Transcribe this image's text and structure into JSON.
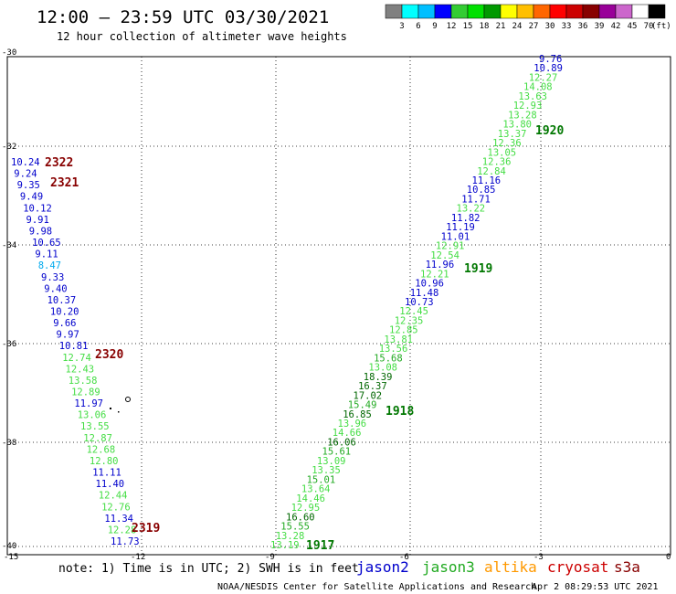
{
  "header": {
    "title": "12:00 – 23:59 UTC 03/30/2021",
    "subtitle": "12 hour collection of altimeter wave heights"
  },
  "colorbar": {
    "labels": [
      "3",
      "6",
      "9",
      "12",
      "15",
      "18",
      "21",
      "24",
      "27",
      "30",
      "33",
      "36",
      "39",
      "42",
      "45",
      "70"
    ],
    "unit": "(ft)",
    "colors": [
      "#808080",
      "#00ffff",
      "#00bfff",
      "#0000ff",
      "#33cc33",
      "#00e000",
      "#009900",
      "#ffff00",
      "#ffbf00",
      "#ff6600",
      "#ff0000",
      "#cc0000",
      "#880000",
      "#990099",
      "#cc66cc",
      "#ffffff",
      "#000000"
    ]
  },
  "axes": {
    "lon_labels": [
      "-15",
      "-12",
      "-9",
      "-6",
      "-3",
      "0"
    ],
    "lat_labels": [
      "-30",
      "-32",
      "-34",
      "-36",
      "-38",
      "-40"
    ]
  },
  "tracks": {
    "left_values": [
      {
        "t": "10.24",
        "c": "#0000cc"
      },
      {
        "t": "9.24",
        "c": "#0000cc"
      },
      {
        "t": "9.35",
        "c": "#0000cc"
      },
      {
        "t": "9.49",
        "c": "#0000cc"
      },
      {
        "t": "10.12",
        "c": "#0000cc"
      },
      {
        "t": "9.91",
        "c": "#0000cc"
      },
      {
        "t": "9.98",
        "c": "#0000cc"
      },
      {
        "t": "10.65",
        "c": "#0000cc"
      },
      {
        "t": "9.11",
        "c": "#0000cc"
      },
      {
        "t": "8.47",
        "c": "#00aaee"
      },
      {
        "t": "9.33",
        "c": "#0000cc"
      },
      {
        "t": "9.40",
        "c": "#0000cc"
      },
      {
        "t": "10.37",
        "c": "#0000cc"
      },
      {
        "t": "10.20",
        "c": "#0000cc"
      },
      {
        "t": "9.66",
        "c": "#0000cc"
      },
      {
        "t": "9.97",
        "c": "#0000cc"
      },
      {
        "t": "10.81",
        "c": "#0000cc"
      },
      {
        "t": "12.74",
        "c": "#44dd44"
      },
      {
        "t": "12.43",
        "c": "#44dd44"
      },
      {
        "t": "13.58",
        "c": "#44dd44"
      },
      {
        "t": "12.89",
        "c": "#44dd44"
      },
      {
        "t": "11.97",
        "c": "#0000cc"
      },
      {
        "t": "13.06",
        "c": "#44dd44"
      },
      {
        "t": "13.55",
        "c": "#44dd44"
      },
      {
        "t": "12.87",
        "c": "#44dd44"
      },
      {
        "t": "12.68",
        "c": "#44dd44"
      },
      {
        "t": "12.80",
        "c": "#44dd44"
      },
      {
        "t": "11.11",
        "c": "#0000cc"
      },
      {
        "t": "11.40",
        "c": "#0000cc"
      },
      {
        "t": "12.44",
        "c": "#44dd44"
      },
      {
        "t": "12.76",
        "c": "#44dd44"
      },
      {
        "t": "11.34",
        "c": "#0000cc"
      },
      {
        "t": "12.28",
        "c": "#44dd44"
      },
      {
        "t": "11.73",
        "c": "#0000cc"
      }
    ],
    "right_values": [
      {
        "t": "9.76",
        "c": "#0000cc"
      },
      {
        "t": "10.89",
        "c": "#0000cc"
      },
      {
        "t": "12.27",
        "c": "#44dd44"
      },
      {
        "t": "14.08",
        "c": "#44dd44"
      },
      {
        "t": "13.63",
        "c": "#44dd44"
      },
      {
        "t": "12.93",
        "c": "#44dd44"
      },
      {
        "t": "13.28",
        "c": "#44dd44"
      },
      {
        "t": "13.80",
        "c": "#44dd44"
      },
      {
        "t": "13.37",
        "c": "#44dd44"
      },
      {
        "t": "12.36",
        "c": "#44dd44"
      },
      {
        "t": "13.05",
        "c": "#44dd44"
      },
      {
        "t": "12.36",
        "c": "#44dd44"
      },
      {
        "t": "12.84",
        "c": "#44dd44"
      },
      {
        "t": "11.16",
        "c": "#0000cc"
      },
      {
        "t": "10.85",
        "c": "#0000cc"
      },
      {
        "t": "11.71",
        "c": "#0000cc"
      },
      {
        "t": "13.22",
        "c": "#44dd44"
      },
      {
        "t": "11.82",
        "c": "#0000cc"
      },
      {
        "t": "11.19",
        "c": "#0000cc"
      },
      {
        "t": "11.01",
        "c": "#0000cc"
      },
      {
        "t": "12.91",
        "c": "#44dd44"
      },
      {
        "t": "12.54",
        "c": "#44dd44"
      },
      {
        "t": "11.96",
        "c": "#0000cc"
      },
      {
        "t": "12.21",
        "c": "#44dd44"
      },
      {
        "t": "10.96",
        "c": "#0000cc"
      },
      {
        "t": "11.48",
        "c": "#0000cc"
      },
      {
        "t": "10.73",
        "c": "#0000cc"
      },
      {
        "t": "12.45",
        "c": "#44dd44"
      },
      {
        "t": "12.35",
        "c": "#44dd44"
      },
      {
        "t": "12.85",
        "c": "#44dd44"
      },
      {
        "t": "13.81",
        "c": "#44dd44"
      },
      {
        "t": "13.56",
        "c": "#44dd44"
      },
      {
        "t": "15.68",
        "c": "#22aa22"
      },
      {
        "t": "13.08",
        "c": "#44dd44"
      },
      {
        "t": "18.39",
        "c": "#006600"
      },
      {
        "t": "16.37",
        "c": "#006600"
      },
      {
        "t": "17.02",
        "c": "#006600"
      },
      {
        "t": "15.49",
        "c": "#22aa22"
      },
      {
        "t": "16.85",
        "c": "#006600"
      },
      {
        "t": "13.96",
        "c": "#44dd44"
      },
      {
        "t": "14.66",
        "c": "#44dd44"
      },
      {
        "t": "16.06",
        "c": "#006600"
      },
      {
        "t": "15.61",
        "c": "#22aa22"
      },
      {
        "t": "13.09",
        "c": "#44dd44"
      },
      {
        "t": "13.35",
        "c": "#44dd44"
      },
      {
        "t": "15.01",
        "c": "#22aa22"
      },
      {
        "t": "13.64",
        "c": "#44dd44"
      },
      {
        "t": "14.46",
        "c": "#44dd44"
      },
      {
        "t": "12.95",
        "c": "#44dd44"
      },
      {
        "t": "16.60",
        "c": "#006600"
      },
      {
        "t": "15.55",
        "c": "#22aa22"
      },
      {
        "t": "13.28",
        "c": "#44dd44"
      },
      {
        "t": "13.19",
        "c": "#44dd44"
      }
    ],
    "hour_labels": [
      {
        "t": "2322",
        "c": "#880000"
      },
      {
        "t": "2321",
        "c": "#880000"
      },
      {
        "t": "2320",
        "c": "#880000"
      },
      {
        "t": "2319",
        "c": "#880000"
      },
      {
        "t": "1920",
        "c": "#007700"
      },
      {
        "t": "1919",
        "c": "#007700"
      },
      {
        "t": "1918",
        "c": "#007700"
      },
      {
        "t": "1917",
        "c": "#007700"
      }
    ]
  },
  "footer": {
    "note": "note: 1) Time is in UTC; 2) SWH is in feet",
    "legend": [
      {
        "name": "jason2",
        "color": "#0000cc"
      },
      {
        "name": "jason3",
        "color": "#22aa22"
      },
      {
        "name": "altika",
        "color": "#ff9900"
      },
      {
        "name": "cryosat",
        "color": "#cc0000"
      },
      {
        "name": "s3a",
        "color": "#880000"
      }
    ],
    "credit": "NOAA/NESDIS Center for Satellite Applications and Research",
    "timestamp": "Apr  2 08:29:53 UTC 2021"
  }
}
